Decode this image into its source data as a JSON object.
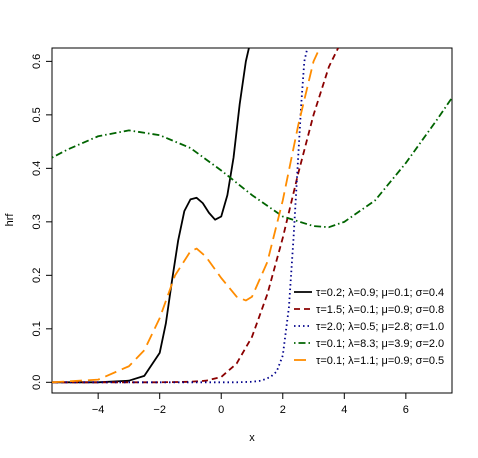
{
  "chart_data": {
    "type": "line",
    "title": "",
    "xlabel": "x",
    "ylabel": "hrf",
    "xlim": [
      -5.5,
      7.5
    ],
    "ylim": [
      -0.02,
      0.625
    ],
    "x_ticks": [
      -4,
      -2,
      0,
      2,
      4,
      6
    ],
    "x_tick_labels": [
      "−4",
      "−2",
      "0",
      "2",
      "4",
      "6"
    ],
    "y_ticks": [
      0.0,
      0.1,
      0.2,
      0.3,
      0.4,
      0.5,
      0.6
    ],
    "y_tick_labels": [
      "0.0",
      "0.1",
      "0.2",
      "0.3",
      "0.4",
      "0.5",
      "0.6"
    ],
    "grid": false,
    "legend_position": "bottom-right",
    "series": [
      {
        "name": "τ=0.2; λ=0.9; μ=0.1; σ=0.4",
        "color": "#000000",
        "style": "solid",
        "x": [
          -5.5,
          -4.0,
          -3.0,
          -2.5,
          -2.0,
          -1.8,
          -1.6,
          -1.4,
          -1.2,
          -1.0,
          -0.8,
          -0.6,
          -0.4,
          -0.2,
          0.0,
          0.2,
          0.4,
          0.6,
          0.8,
          0.9
        ],
        "y": [
          0.0,
          0.0,
          0.003,
          0.012,
          0.055,
          0.11,
          0.19,
          0.265,
          0.32,
          0.342,
          0.345,
          0.335,
          0.317,
          0.304,
          0.31,
          0.35,
          0.42,
          0.52,
          0.6,
          0.625
        ]
      },
      {
        "name": "τ=1.5; λ=0.1; μ=0.9; σ=0.8",
        "color": "#8b0000",
        "style": "dashed",
        "x": [
          -5.5,
          -2.0,
          -1.0,
          -0.5,
          0.0,
          0.5,
          1.0,
          1.5,
          2.0,
          2.5,
          3.0,
          3.5,
          3.8
        ],
        "y": [
          0.0,
          0.0,
          0.001,
          0.003,
          0.01,
          0.035,
          0.085,
          0.165,
          0.27,
          0.39,
          0.5,
          0.59,
          0.625
        ]
      },
      {
        "name": "τ=2.0; λ=0.5; μ=2.8; σ=1.0",
        "color": "#00008b",
        "style": "dotted",
        "x": [
          -5.5,
          0.5,
          1.0,
          1.3,
          1.6,
          1.8,
          2.0,
          2.2,
          2.35,
          2.5,
          2.6,
          2.7,
          2.8
        ],
        "y": [
          0.0,
          0.0,
          0.001,
          0.003,
          0.01,
          0.02,
          0.05,
          0.14,
          0.27,
          0.42,
          0.52,
          0.6,
          0.625
        ]
      },
      {
        "name": "τ=0.1; λ=8.3; μ=3.9; σ=2.0",
        "color": "#006400",
        "style": "dotdash",
        "x": [
          -5.5,
          -5.0,
          -4.0,
          -3.0,
          -2.0,
          -1.0,
          0.0,
          1.0,
          2.0,
          3.0,
          3.5,
          4.0,
          5.0,
          6.0,
          7.0,
          7.5
        ],
        "y": [
          0.42,
          0.435,
          0.46,
          0.471,
          0.462,
          0.438,
          0.396,
          0.35,
          0.31,
          0.292,
          0.29,
          0.3,
          0.34,
          0.41,
          0.49,
          0.532
        ]
      },
      {
        "name": "τ=0.1; λ=1.1; μ=0.9; σ=0.5",
        "color": "#ff8c00",
        "style": "longdash",
        "x": [
          -5.5,
          -4.0,
          -3.0,
          -2.5,
          -2.0,
          -1.5,
          -1.0,
          -0.8,
          -0.5,
          0.0,
          0.5,
          0.8,
          1.0,
          1.5,
          2.0,
          2.5,
          3.0,
          3.2
        ],
        "y": [
          0.0,
          0.005,
          0.03,
          0.06,
          0.12,
          0.2,
          0.245,
          0.25,
          0.235,
          0.195,
          0.16,
          0.153,
          0.16,
          0.225,
          0.34,
          0.48,
          0.6,
          0.625
        ]
      }
    ]
  }
}
